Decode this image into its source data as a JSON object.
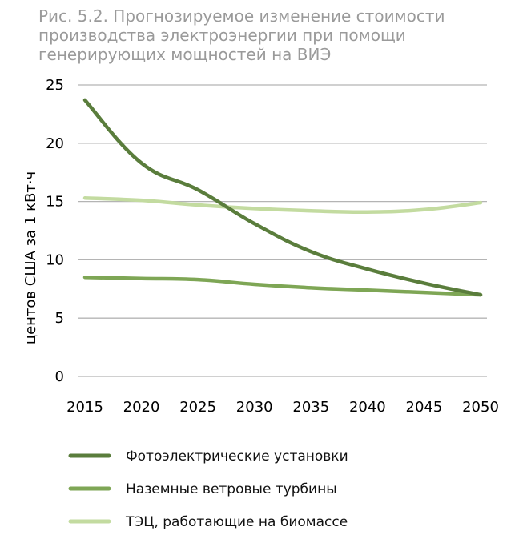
{
  "chart_data": {
    "type": "line",
    "title": "Рис. 5.2. Прогнозируемое изменение стоимости\nпроизводства электроэнергии при помощи\nгенерирующих мощностей на ВИЭ",
    "xlabel": "",
    "ylabel": "центов США за 1 кВт·ч",
    "x": [
      "2015",
      "2020",
      "2025",
      "2030",
      "2035",
      "2040",
      "2045",
      "2050"
    ],
    "ylim": [
      0,
      25
    ],
    "yticks": [
      "0",
      "5",
      "10",
      "15",
      "20",
      "25"
    ],
    "grid": true,
    "legend_position": "bottom",
    "series": [
      {
        "name": "Фотоэлектрические установки",
        "values": [
          23.7,
          18.3,
          16.0,
          13.1,
          10.7,
          9.2,
          8.0,
          7.0
        ],
        "color": "#5a7d3c"
      },
      {
        "name": "Наземные ветровые турбины",
        "values": [
          8.5,
          8.4,
          8.3,
          7.9,
          7.6,
          7.4,
          7.2,
          7.0
        ],
        "color": "#7ea655"
      },
      {
        "name": "ТЭЦ, работающие на биомассе",
        "values": [
          15.3,
          15.1,
          14.7,
          14.4,
          14.2,
          14.1,
          14.3,
          14.9
        ],
        "color": "#c3dba0"
      }
    ]
  }
}
